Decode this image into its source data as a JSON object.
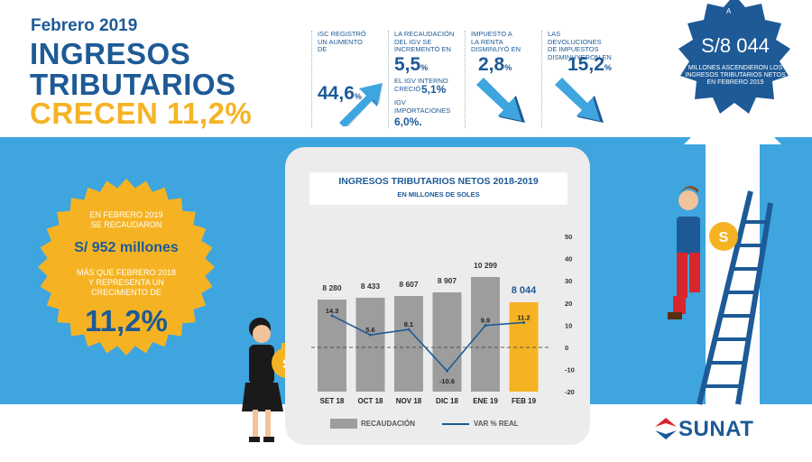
{
  "header": {
    "date": "Febrero 2019",
    "title_line1": "INGRESOS",
    "title_line2": "TRIBUTARIOS",
    "title_line3": "CRECEN 11,2%"
  },
  "stats": [
    {
      "label_lines": [
        "ISC registró",
        "un aumento",
        "de"
      ],
      "value": "44,6",
      "unit": "%",
      "trend": "up"
    },
    {
      "label_lines": [
        "La recaudación",
        "del IGV se",
        "incrementó en"
      ],
      "value": "5,5",
      "unit": "%",
      "trend": "up",
      "sub1_label_lines": [
        "El IGV interno",
        "creció"
      ],
      "sub1_value": "5,1%",
      "sub2_label_lines": [
        "IGV",
        "importaciones"
      ],
      "sub2_value": "6,0%."
    },
    {
      "label_lines": [
        "Impuesto a",
        "la Renta",
        "disminuyó en"
      ],
      "value": "2,8",
      "unit": "%",
      "trend": "down"
    },
    {
      "label_lines": [
        "Las devoluciones",
        "de impuestos",
        "disminuyeron en"
      ],
      "value": "15,2",
      "unit": "%",
      "trend": "down"
    }
  ],
  "seal": {
    "prefix": "A",
    "value": "S/8 044",
    "text_lines": [
      "Millones ascendieron los",
      "ingresos tributarios netos",
      "en febrero 2019"
    ]
  },
  "burst": {
    "line1": "En febrero 2019",
    "line2": "se recaudaron",
    "amount": "S/ 952 millones",
    "line3": "más que febrero 2018",
    "line4": "y representa un",
    "line5": "crecimiento de",
    "percent": "11,2%"
  },
  "chart_data": {
    "type": "bar",
    "title": "INGRESOS TRIBUTARIOS NETOS 2018-2019",
    "subtitle": "EN MILLONES DE SOLES",
    "categories": [
      "SET 18",
      "OCT 18",
      "NOV 18",
      "DIC 18",
      "ENE 19",
      "FEB 19"
    ],
    "series": [
      {
        "name": "RECAUDACIÓN",
        "type": "bar",
        "values": [
          8280,
          8433,
          8607,
          8907,
          10299,
          8044
        ],
        "labels": [
          "8 280",
          "8 433",
          "8 607",
          "8 907",
          "10 299",
          "8 044"
        ],
        "highlight_last": true
      },
      {
        "name": "VAR % REAL",
        "type": "line",
        "axis": "right",
        "values": [
          14.3,
          5.6,
          8.1,
          -10.6,
          9.9,
          11.2
        ],
        "labels": [
          "14.3",
          "5.6",
          "8.1",
          "-10.6",
          "9.9",
          "11.2"
        ]
      }
    ],
    "right_axis": {
      "ylim": [
        -20,
        50
      ],
      "ticks": [
        "50",
        "40",
        "30",
        "20",
        "10",
        "0",
        "-10",
        "-20"
      ]
    },
    "legend": [
      "RECAUDACIÓN",
      "VAR % REAL"
    ],
    "colors": {
      "bar": "#9d9d9d",
      "highlight": "#f5b324",
      "line": "#1d5a96"
    }
  },
  "brand": "SUNAT",
  "colors": {
    "navy": "#1d5a96",
    "yellow": "#f5b324",
    "sky": "#3ea5de",
    "red": "#d8262c"
  }
}
